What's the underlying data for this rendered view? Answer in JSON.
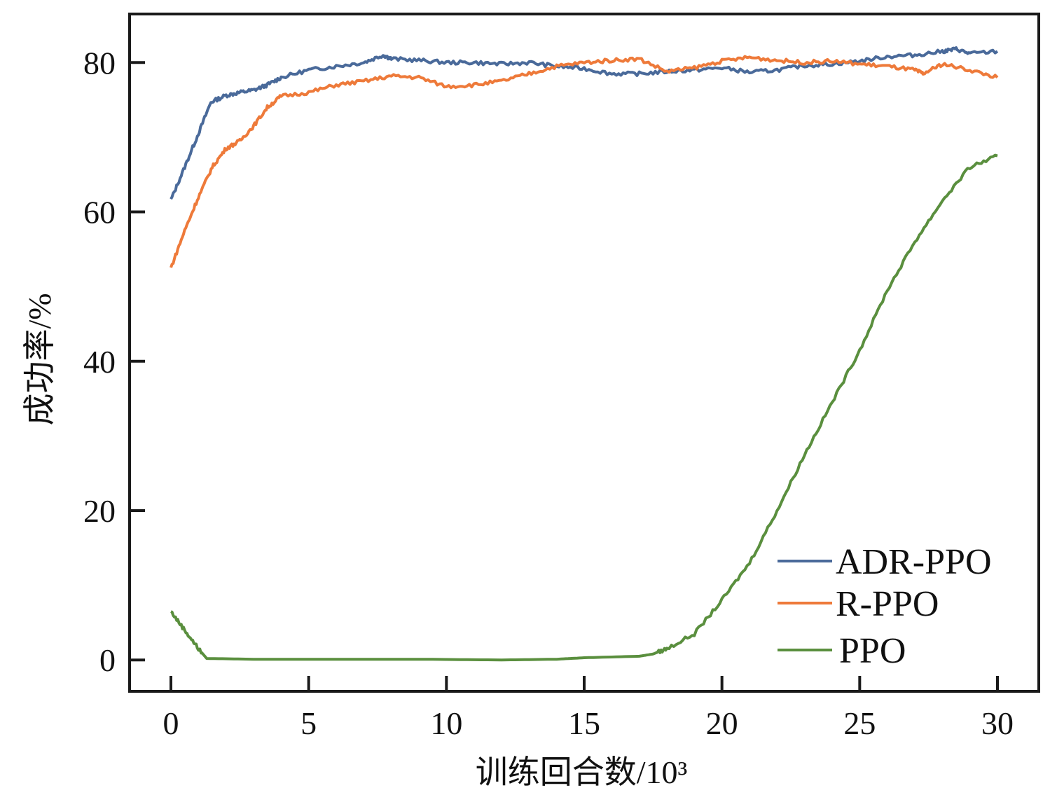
{
  "chart_data": {
    "type": "line",
    "title": "",
    "xlabel": "训练回合数/10³",
    "ylabel": "成功率/%",
    "xlim": [
      -1.5,
      31.5
    ],
    "ylim": [
      -4.2,
      86.5
    ],
    "xticks": [
      0,
      5,
      10,
      15,
      20,
      25,
      30
    ],
    "yticks": [
      0,
      20,
      40,
      60,
      80
    ],
    "grid": false,
    "legend_position": "bottom-right",
    "series": [
      {
        "name": "ADR-PPO",
        "color": "#4a6a9a",
        "x": [
          0,
          0.5,
          1,
          1.45,
          2,
          2.5,
          3,
          3.5,
          4,
          5,
          6,
          7,
          7.7,
          8,
          9,
          10,
          11,
          12,
          13,
          14,
          15,
          16,
          17,
          18,
          19,
          20,
          21,
          22,
          23,
          24,
          25,
          26,
          27,
          28,
          28.5,
          29,
          30
        ],
        "y": [
          61.6,
          66,
          70.5,
          74.7,
          75.6,
          76,
          76.3,
          77,
          78,
          79,
          79.5,
          80,
          81,
          80.5,
          80.3,
          80,
          80,
          79.8,
          80,
          79.5,
          79.2,
          78.5,
          78.5,
          78.8,
          79,
          79.3,
          78.7,
          79,
          79.6,
          79.8,
          80.2,
          80.8,
          81,
          81.5,
          81.8,
          81.2,
          81.5
        ]
      },
      {
        "name": "R-PPO",
        "color": "#ee7a3a",
        "x": [
          0,
          0.5,
          1,
          1.5,
          2,
          2.5,
          3,
          3.5,
          4,
          5,
          6,
          7,
          8,
          9,
          10,
          11,
          12,
          13,
          14,
          15,
          16,
          17,
          18,
          19,
          20,
          21,
          22,
          23,
          24,
          25,
          26,
          27,
          27.3,
          28,
          29,
          30
        ],
        "y": [
          52.5,
          57.5,
          62,
          66,
          68.5,
          69.5,
          71.5,
          74,
          75.5,
          76,
          77,
          77.5,
          78.2,
          78,
          76.8,
          77,
          77.5,
          78.5,
          79.5,
          80,
          80.3,
          80.5,
          78.8,
          79.3,
          80.2,
          80.7,
          80.3,
          80,
          80.2,
          79.8,
          79.5,
          79,
          78.5,
          79.8,
          79,
          78
        ]
      },
      {
        "name": "PPO",
        "color": "#5a8f3e",
        "x": [
          0,
          0.5,
          1,
          1.3,
          3,
          6,
          9,
          12,
          14,
          15,
          17,
          17.5,
          18,
          19,
          20,
          21,
          22,
          23,
          24,
          25,
          26,
          27,
          28,
          29,
          30
        ],
        "y": [
          6.5,
          4,
          1.5,
          0.2,
          0.1,
          0.1,
          0.1,
          0,
          0.1,
          0.3,
          0.5,
          0.8,
          1.5,
          3.5,
          8,
          13,
          20,
          27.5,
          34.5,
          41.5,
          49.5,
          56,
          61.5,
          66,
          67.5
        ]
      }
    ]
  }
}
